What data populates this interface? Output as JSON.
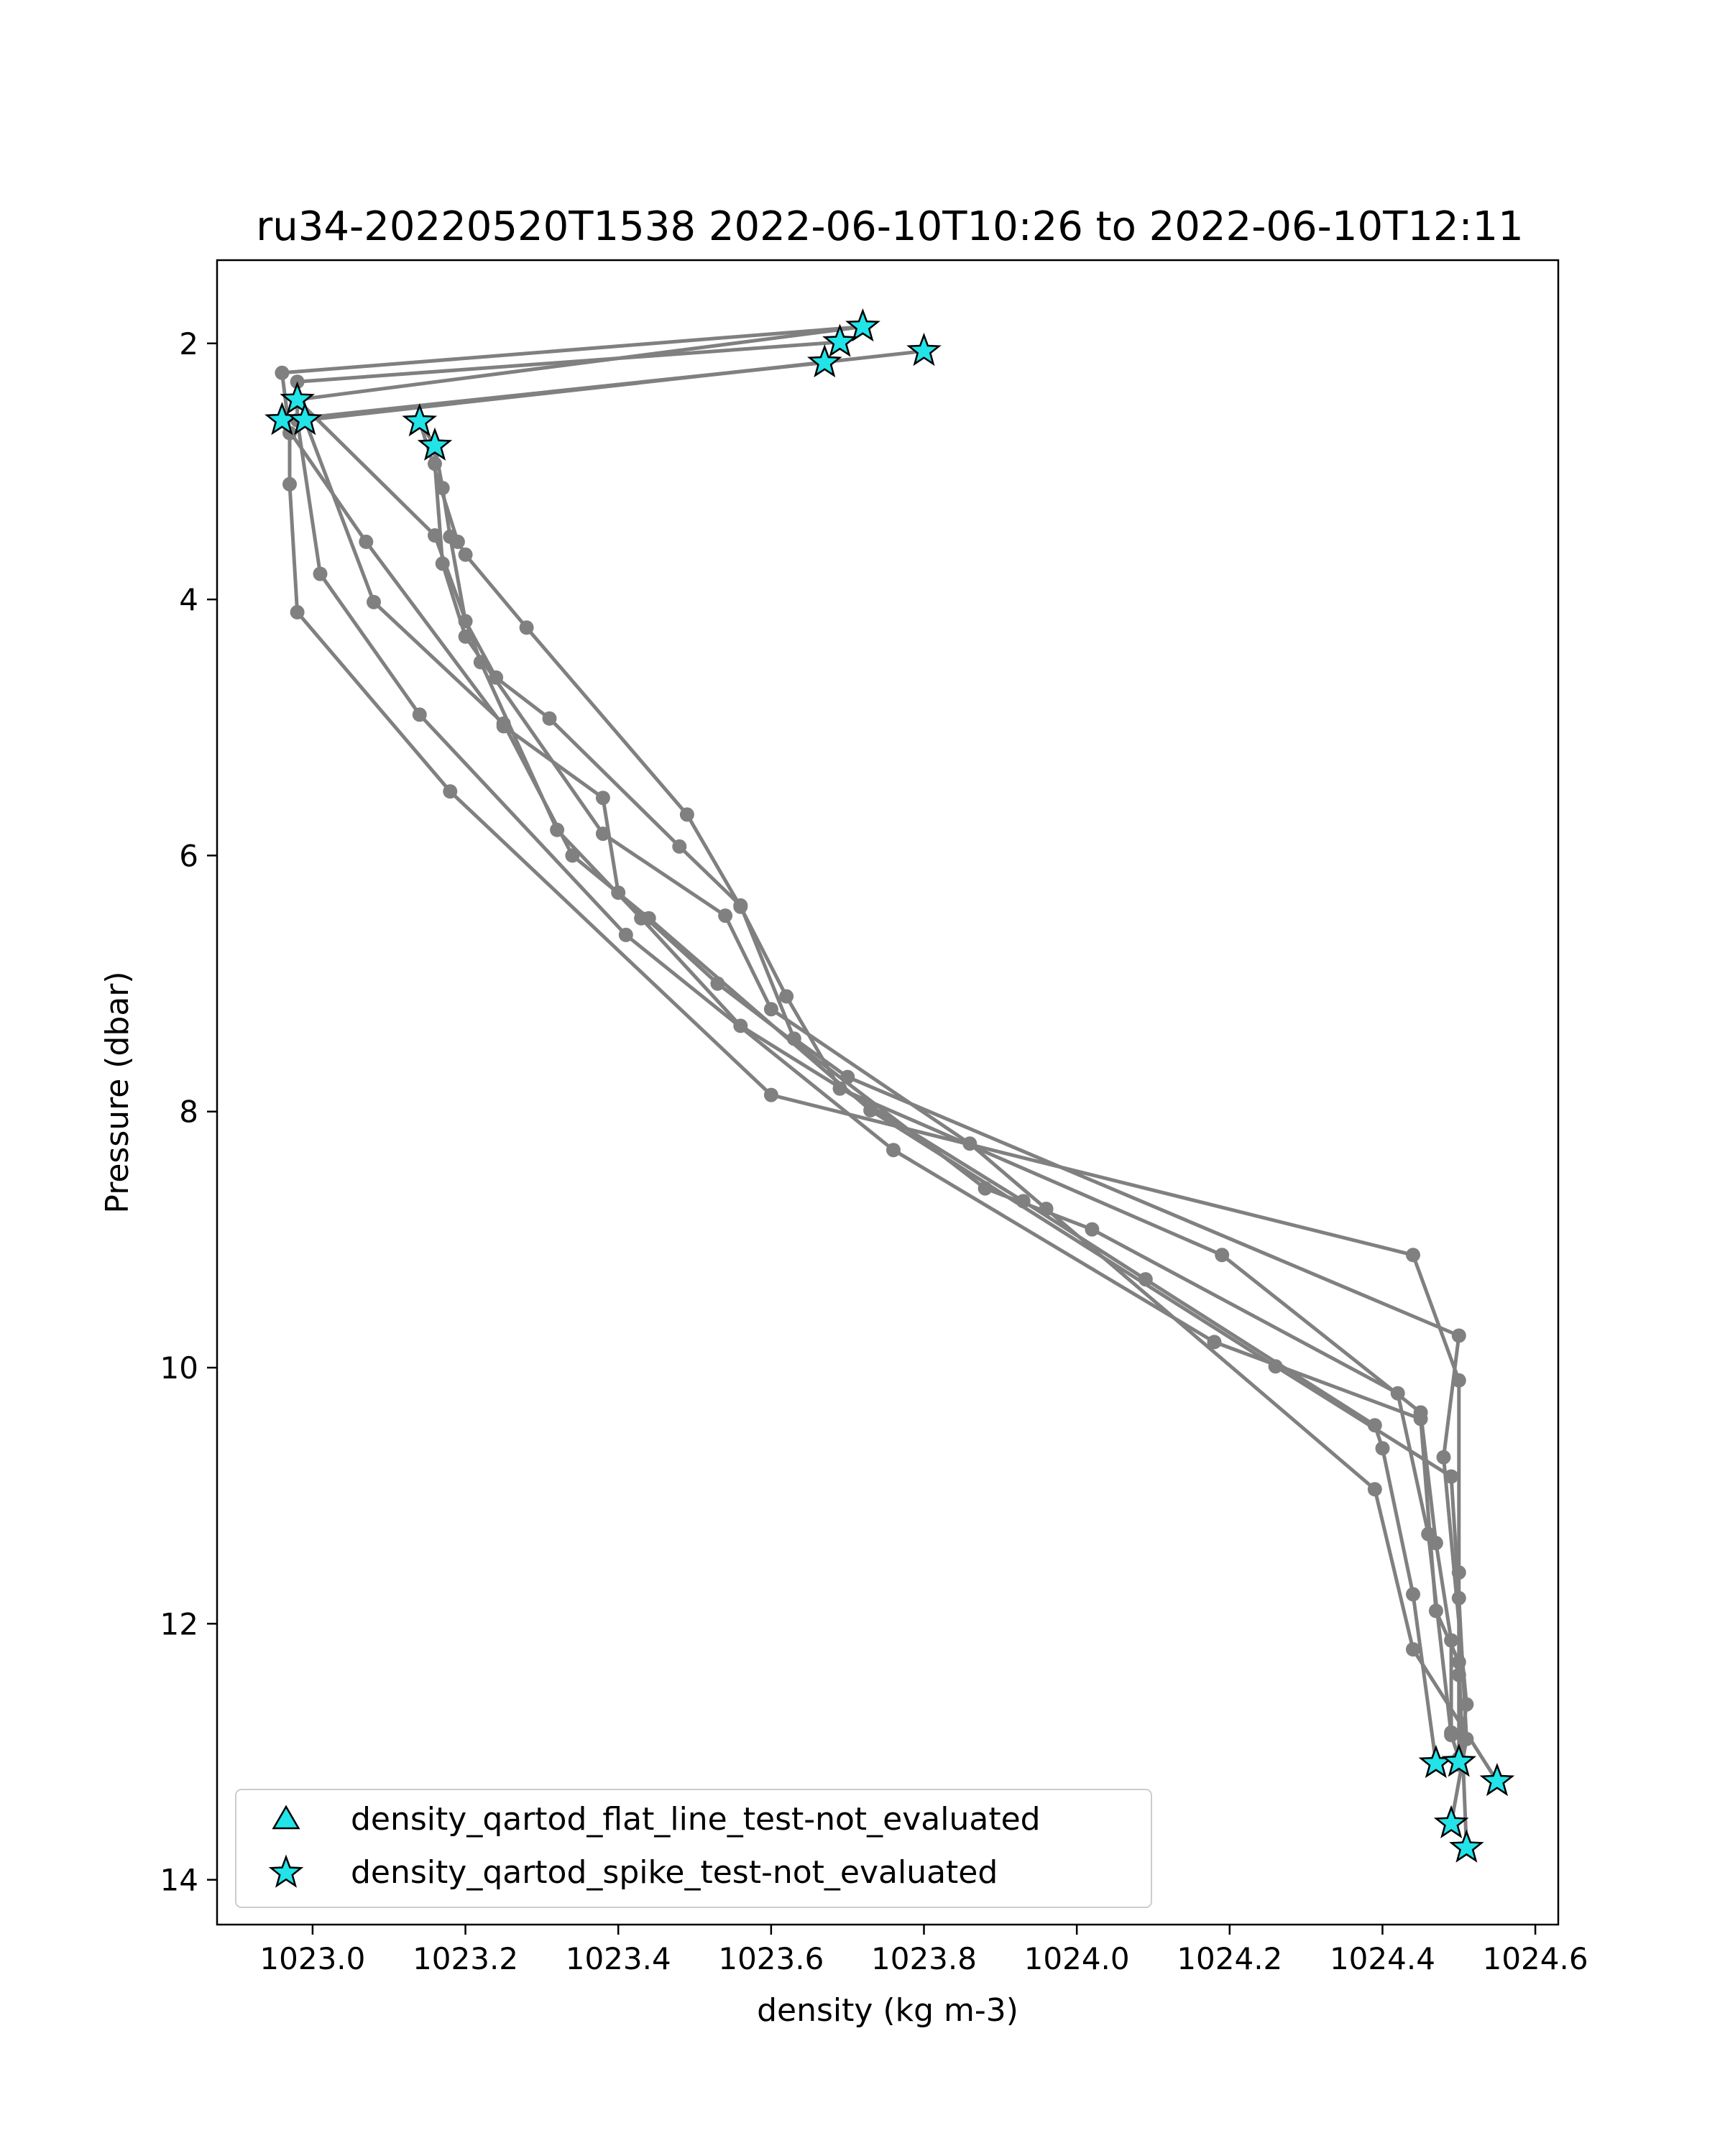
{
  "chart_data": {
    "type": "line",
    "title": "ru34-20220520T1538 2022-06-10T10:26 to 2022-06-10T12:11",
    "xlabel": "density (kg m-3)",
    "ylabel": "Pressure (dbar)",
    "xlim": [
      1022.875,
      1024.63
    ],
    "ylim": [
      14.35,
      1.35
    ],
    "y_inverted": true,
    "grid": false,
    "legend_position": "lower-left",
    "xticks": [
      {
        "value": 1023.0,
        "label": "1023.0"
      },
      {
        "value": 1023.2,
        "label": "1023.2"
      },
      {
        "value": 1023.4,
        "label": "1023.4"
      },
      {
        "value": 1023.6,
        "label": "1023.6"
      },
      {
        "value": 1023.8,
        "label": "1023.8"
      },
      {
        "value": 1024.0,
        "label": "1024.0"
      },
      {
        "value": 1024.2,
        "label": "1024.2"
      },
      {
        "value": 1024.4,
        "label": "1024.4"
      },
      {
        "value": 1024.6,
        "label": "1024.6"
      }
    ],
    "yticks": [
      {
        "value": 2,
        "label": "2"
      },
      {
        "value": 4,
        "label": "4"
      },
      {
        "value": 6,
        "label": "6"
      },
      {
        "value": 8,
        "label": "8"
      },
      {
        "value": 10,
        "label": "10"
      },
      {
        "value": 12,
        "label": "12"
      },
      {
        "value": 14,
        "label": "14"
      }
    ],
    "colors": {
      "profile_line": "#808080",
      "marker_fill": "#22e3e8",
      "marker_edge": "#000000"
    },
    "profiles": [
      {
        "points": [
          [
            1023.72,
            1.87
          ],
          [
            1022.96,
            2.23
          ],
          [
            1022.97,
            2.7
          ],
          [
            1022.97,
            3.1
          ],
          [
            1022.98,
            4.1
          ],
          [
            1023.18,
            5.5
          ],
          [
            1023.6,
            7.87
          ],
          [
            1024.44,
            9.12
          ],
          [
            1024.5,
            10.1
          ],
          [
            1024.5,
            11.6
          ],
          [
            1024.5,
            12.4
          ],
          [
            1024.5,
            13.1
          ]
        ]
      },
      {
        "points": [
          [
            1023.69,
            1.99
          ],
          [
            1022.98,
            2.3
          ],
          [
            1022.98,
            2.6
          ],
          [
            1023.01,
            3.8
          ],
          [
            1023.14,
            4.9
          ],
          [
            1023.41,
            6.62
          ],
          [
            1023.76,
            8.3
          ],
          [
            1024.18,
            9.8
          ],
          [
            1024.45,
            10.4
          ],
          [
            1024.47,
            11.9
          ],
          [
            1024.5,
            12.3
          ],
          [
            1024.51,
            13.75
          ]
        ]
      },
      {
        "points": [
          [
            1023.8,
            2.06
          ],
          [
            1022.99,
            2.6
          ],
          [
            1023.08,
            4.02
          ],
          [
            1023.25,
            4.97
          ],
          [
            1023.34,
            6.0
          ],
          [
            1023.44,
            6.49
          ],
          [
            1023.73,
            7.99
          ],
          [
            1024.26,
            9.99
          ],
          [
            1024.49,
            10.85
          ],
          [
            1024.5,
            11.8
          ],
          [
            1024.51,
            12.9
          ],
          [
            1024.49,
            13.56
          ]
        ]
      },
      {
        "points": [
          [
            1023.67,
            2.15
          ],
          [
            1022.96,
            2.6
          ],
          [
            1023.07,
            3.55
          ],
          [
            1023.25,
            4.99
          ],
          [
            1023.38,
            5.55
          ],
          [
            1023.4,
            6.29
          ],
          [
            1023.53,
            7.0
          ],
          [
            1023.88,
            8.6
          ],
          [
            1024.02,
            8.92
          ],
          [
            1024.42,
            10.2
          ],
          [
            1024.46,
            11.3
          ],
          [
            1024.49,
            12.87
          ],
          [
            1024.5,
            13.05
          ]
        ]
      },
      {
        "points": [
          [
            1023.72,
            1.87
          ],
          [
            1022.98,
            2.44
          ],
          [
            1023.16,
            3.5
          ],
          [
            1023.22,
            4.49
          ],
          [
            1023.32,
            5.8
          ],
          [
            1023.43,
            6.49
          ],
          [
            1023.56,
            7.33
          ],
          [
            1023.93,
            8.7
          ],
          [
            1024.09,
            9.31
          ],
          [
            1024.39,
            10.45
          ],
          [
            1024.4,
            10.63
          ],
          [
            1024.44,
            11.77
          ],
          [
            1024.47,
            13.09
          ]
        ]
      },
      {
        "points": [
          [
            1023.14,
            2.61
          ],
          [
            1023.16,
            2.8
          ],
          [
            1023.16,
            2.94
          ],
          [
            1023.17,
            3.72
          ],
          [
            1023.2,
            4.29
          ],
          [
            1023.38,
            5.83
          ],
          [
            1023.54,
            6.47
          ],
          [
            1023.6,
            7.2
          ],
          [
            1023.86,
            8.25
          ],
          [
            1023.96,
            8.76
          ],
          [
            1024.39,
            10.95
          ],
          [
            1024.44,
            12.2
          ],
          [
            1024.55,
            13.23
          ]
        ]
      },
      {
        "points": [
          [
            1023.16,
            2.8
          ],
          [
            1023.17,
            3.13
          ],
          [
            1023.18,
            3.51
          ],
          [
            1023.2,
            4.17
          ],
          [
            1023.24,
            4.61
          ],
          [
            1023.31,
            4.93
          ],
          [
            1023.48,
            5.93
          ],
          [
            1023.56,
            6.39
          ],
          [
            1023.63,
            7.43
          ],
          [
            1023.7,
            7.73
          ],
          [
            1024.5,
            9.75
          ],
          [
            1024.48,
            10.7
          ],
          [
            1024.51,
            12.63
          ],
          [
            1024.5,
            13.1
          ]
        ]
      },
      {
        "points": [
          [
            1023.14,
            2.61
          ],
          [
            1023.19,
            3.55
          ],
          [
            1023.2,
            3.65
          ],
          [
            1023.28,
            4.22
          ],
          [
            1023.49,
            5.68
          ],
          [
            1023.56,
            6.4
          ],
          [
            1023.62,
            7.1
          ],
          [
            1023.69,
            7.82
          ],
          [
            1024.19,
            9.12
          ],
          [
            1024.45,
            10.35
          ],
          [
            1024.47,
            11.37
          ],
          [
            1024.49,
            12.13
          ],
          [
            1024.49,
            12.85
          ]
        ]
      }
    ],
    "spike_flags": [
      [
        1023.72,
        1.87
      ],
      [
        1023.69,
        1.99
      ],
      [
        1023.8,
        2.06
      ],
      [
        1023.67,
        2.15
      ],
      [
        1022.98,
        2.44
      ],
      [
        1022.96,
        2.6
      ],
      [
        1022.99,
        2.6
      ],
      [
        1023.14,
        2.61
      ],
      [
        1023.16,
        2.8
      ],
      [
        1024.47,
        13.09
      ],
      [
        1024.5,
        13.08
      ],
      [
        1024.55,
        13.23
      ],
      [
        1024.49,
        13.56
      ],
      [
        1024.51,
        13.75
      ]
    ],
    "flat_line_flags": [],
    "legend": [
      {
        "marker": "triangle",
        "label": "density_qartod_flat_line_test-not_evaluated"
      },
      {
        "marker": "star",
        "label": "density_qartod_spike_test-not_evaluated"
      }
    ]
  }
}
